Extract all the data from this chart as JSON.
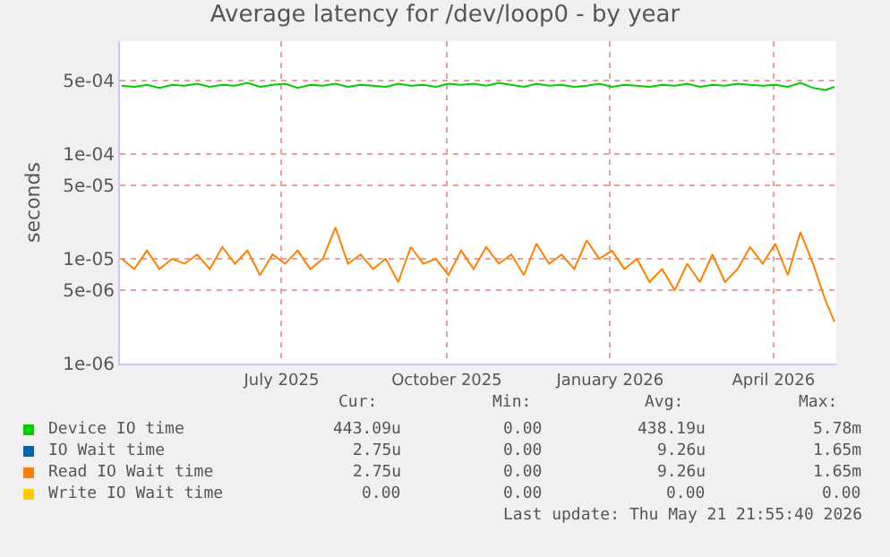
{
  "chart_data": {
    "type": "line",
    "title": "Average latency for /dev/loop0 - by year",
    "ylabel": "seconds",
    "x": [
      "2025-04-18",
      "2025-04-25",
      "2025-05-02",
      "2025-05-09",
      "2025-05-16",
      "2025-05-23",
      "2025-05-30",
      "2025-06-06",
      "2025-06-13",
      "2025-06-20",
      "2025-06-27",
      "2025-07-04",
      "2025-07-11",
      "2025-07-18",
      "2025-07-25",
      "2025-08-01",
      "2025-08-08",
      "2025-08-15",
      "2025-08-22",
      "2025-08-29",
      "2025-09-05",
      "2025-09-12",
      "2025-09-19",
      "2025-09-26",
      "2025-10-03",
      "2025-10-10",
      "2025-10-17",
      "2025-10-24",
      "2025-10-31",
      "2025-11-07",
      "2025-11-14",
      "2025-11-21",
      "2025-11-28",
      "2025-12-05",
      "2025-12-12",
      "2025-12-19",
      "2025-12-26",
      "2026-01-02",
      "2026-01-09",
      "2026-01-16",
      "2026-01-23",
      "2026-01-30",
      "2026-02-06",
      "2026-02-13",
      "2026-02-20",
      "2026-02-27",
      "2026-03-06",
      "2026-03-13",
      "2026-03-20",
      "2026-03-27",
      "2026-04-03",
      "2026-04-10",
      "2026-04-17",
      "2026-04-24",
      "2026-05-01",
      "2026-05-08",
      "2026-05-15",
      "2026-05-20"
    ],
    "series": [
      {
        "name": "Device IO time",
        "color": "#00cc00",
        "values": [
          0.00045,
          0.00044,
          0.00046,
          0.00043,
          0.00046,
          0.00045,
          0.00047,
          0.00044,
          0.00046,
          0.00045,
          0.00048,
          0.00044,
          0.00046,
          0.00047,
          0.00043,
          0.00046,
          0.00045,
          0.00047,
          0.00044,
          0.00046,
          0.00045,
          0.00044,
          0.00047,
          0.00045,
          0.00046,
          0.00044,
          0.00047,
          0.00046,
          0.00047,
          0.00045,
          0.00048,
          0.00046,
          0.00044,
          0.00047,
          0.00045,
          0.00046,
          0.00044,
          0.00045,
          0.00047,
          0.00044,
          0.00046,
          0.00045,
          0.00044,
          0.00046,
          0.00045,
          0.00047,
          0.00044,
          0.00046,
          0.00045,
          0.00047,
          0.00046,
          0.00045,
          0.00046,
          0.00044,
          0.00048,
          0.00043,
          0.00041,
          0.00044
        ]
      },
      {
        "name": "IO Wait time",
        "color": "#0066b3",
        "values": [
          null,
          null,
          null,
          null,
          null,
          null,
          null,
          null,
          null,
          null,
          null,
          null,
          null,
          null,
          null,
          null,
          null,
          null,
          null,
          null,
          null,
          null,
          null,
          null,
          null,
          null,
          null,
          null,
          null,
          null,
          null,
          null,
          null,
          null,
          null,
          null,
          null,
          null,
          null,
          null,
          null,
          null,
          null,
          null,
          null,
          null,
          null,
          null,
          null,
          null,
          null,
          null,
          null,
          null,
          null,
          null,
          null,
          null
        ]
      },
      {
        "name": "Read IO Wait time",
        "color": "#ff8000",
        "values": [
          1e-05,
          8e-06,
          1.2e-05,
          8e-06,
          1e-05,
          9e-06,
          1.1e-05,
          8e-06,
          1.3e-05,
          9e-06,
          1.2e-05,
          7e-06,
          1.1e-05,
          9e-06,
          1.2e-05,
          8e-06,
          1e-05,
          2e-05,
          9e-06,
          1.1e-05,
          8e-06,
          1e-05,
          6e-06,
          1.3e-05,
          9e-06,
          1e-05,
          7e-06,
          1.2e-05,
          8e-06,
          1.3e-05,
          9e-06,
          1.1e-05,
          7e-06,
          1.4e-05,
          9e-06,
          1.1e-05,
          8e-06,
          1.5e-05,
          1e-05,
          1.2e-05,
          8e-06,
          1e-05,
          6e-06,
          8e-06,
          5e-06,
          9e-06,
          6e-06,
          1.1e-05,
          6e-06,
          8e-06,
          1.3e-05,
          9e-06,
          1.4e-05,
          7e-06,
          1.8e-05,
          9e-06,
          4e-06,
          2.5e-06
        ]
      },
      {
        "name": "Write IO Wait time",
        "color": "#ffcc00",
        "values": [
          null,
          null,
          null,
          null,
          null,
          null,
          null,
          null,
          null,
          null,
          null,
          null,
          null,
          null,
          null,
          null,
          null,
          null,
          null,
          null,
          null,
          null,
          null,
          null,
          null,
          null,
          null,
          null,
          null,
          null,
          null,
          null,
          null,
          null,
          null,
          null,
          null,
          null,
          null,
          null,
          null,
          null,
          null,
          null,
          null,
          null,
          null,
          null,
          null,
          null,
          null,
          null,
          null,
          null,
          null,
          null,
          null,
          null
        ]
      }
    ],
    "log": "y",
    "xlim": [
      "2025-04-17",
      "2026-05-21"
    ],
    "xticks": [
      {
        "value": "2025-07-16",
        "label": "July 2025"
      },
      {
        "value": "2025-10-16",
        "label": "October 2025"
      },
      {
        "value": "2026-01-15",
        "label": "January 2026"
      },
      {
        "value": "2026-04-16",
        "label": "April 2026"
      }
    ],
    "ylim": [
      1e-06,
      0.0012
    ],
    "yticks": [
      {
        "value": 1e-06,
        "label": "1e-06"
      },
      {
        "value": 5e-06,
        "label": "5e-06"
      },
      {
        "value": 1e-05,
        "label": "1e-05"
      },
      {
        "value": 5e-05,
        "label": "5e-05"
      },
      {
        "value": 0.0001,
        "label": "1e-04"
      },
      {
        "value": 0.0005,
        "label": "5e-04"
      }
    ],
    "grid": true,
    "legend": "bottom left",
    "annotations": [
      "Cur:",
      "Min:",
      "Avg:",
      "Max:",
      "443.09u",
      "0.00",
      "438.19u",
      "5.78m",
      "2.75u",
      "0.00",
      "9.26u",
      "1.65m",
      "2.75u",
      "0.00",
      "9.26u",
      "1.65m",
      "0.00",
      "0.00",
      "0.00",
      "0.00",
      "Last update: Thu May 21 21:55:40 2026"
    ]
  }
}
